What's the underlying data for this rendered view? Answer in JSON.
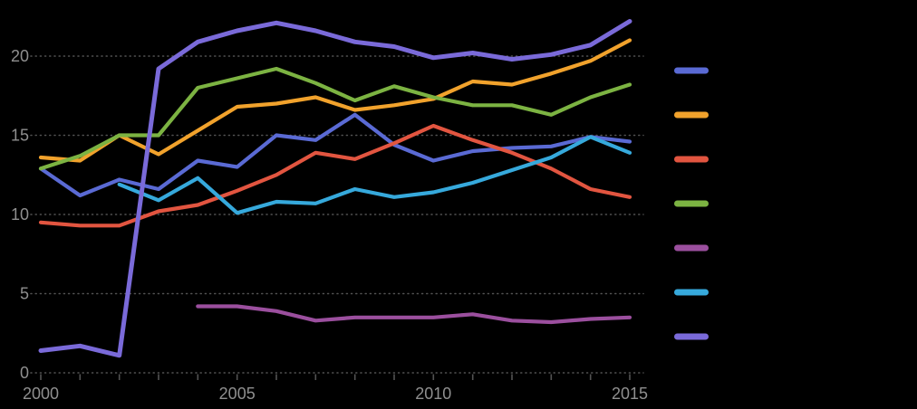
{
  "colors": {
    "background": "#000000",
    "tick_label": "#8f8f8f",
    "grid": "#525252"
  },
  "chart_data": {
    "type": "line",
    "title": "",
    "xlabel": "",
    "ylabel": "",
    "x": [
      2000,
      2001,
      2002,
      2003,
      2004,
      2005,
      2006,
      2007,
      2008,
      2009,
      2010,
      2011,
      2012,
      2013,
      2014,
      2015
    ],
    "x_tick_values": [
      2000,
      2005,
      2010,
      2015
    ],
    "x_tick_labels": [
      "2000",
      "2005",
      "2010",
      "2015"
    ],
    "y_tick_values": [
      0,
      5,
      10,
      15,
      20
    ],
    "y_tick_labels": [
      "0",
      "5",
      "10",
      "15",
      "20"
    ],
    "xlim": [
      2000,
      2015
    ],
    "ylim": [
      0,
      22.5
    ],
    "grid": "horizontal-dotted",
    "legend_position": "right",
    "legend_text_visible": false,
    "series": [
      {
        "name": "blue-series",
        "color": "#5A6AD4",
        "line_width": 4.2,
        "values": [
          12.9,
          11.2,
          12.2,
          11.6,
          13.4,
          13.0,
          15.0,
          14.7,
          16.3,
          14.4,
          13.4,
          14.0,
          14.2,
          14.3,
          14.9,
          14.6
        ]
      },
      {
        "name": "orange-series",
        "color": "#F1A22C",
        "line_width": 4.2,
        "values": [
          13.6,
          13.4,
          15.0,
          13.8,
          15.3,
          16.8,
          17.0,
          17.4,
          16.6,
          16.9,
          17.3,
          18.4,
          18.2,
          18.9,
          19.7,
          21.0
        ]
      },
      {
        "name": "red-series",
        "color": "#E25540",
        "line_width": 4.2,
        "values": [
          9.5,
          9.3,
          9.3,
          10.2,
          10.6,
          11.5,
          12.5,
          13.9,
          13.5,
          14.5,
          15.6,
          14.7,
          13.9,
          12.9,
          11.6,
          11.1
        ]
      },
      {
        "name": "green-series",
        "color": "#7CB342",
        "line_width": 4.2,
        "values": [
          12.9,
          13.7,
          15.0,
          15.0,
          18.0,
          18.6,
          19.2,
          18.3,
          17.2,
          18.1,
          17.4,
          16.9,
          16.9,
          16.3,
          17.4,
          18.2
        ]
      },
      {
        "name": "purple-series",
        "color": "#9B4F9E",
        "line_width": 4.2,
        "values": [
          null,
          null,
          null,
          null,
          4.2,
          4.2,
          3.9,
          3.3,
          3.5,
          3.5,
          3.5,
          3.7,
          3.3,
          3.2,
          3.4,
          3.5
        ]
      },
      {
        "name": "cyan-series",
        "color": "#36A9DC",
        "line_width": 4.2,
        "values": [
          null,
          null,
          11.9,
          10.9,
          12.3,
          10.1,
          10.8,
          10.7,
          11.6,
          11.1,
          11.4,
          12.0,
          12.8,
          13.6,
          14.9,
          13.9
        ]
      },
      {
        "name": "violet-series",
        "color": "#7A6AD9",
        "line_width": 5,
        "values": [
          1.4,
          1.7,
          1.1,
          19.2,
          20.9,
          21.6,
          22.1,
          21.6,
          20.9,
          20.6,
          19.9,
          20.2,
          19.8,
          20.1,
          20.7,
          22.2
        ]
      }
    ]
  }
}
